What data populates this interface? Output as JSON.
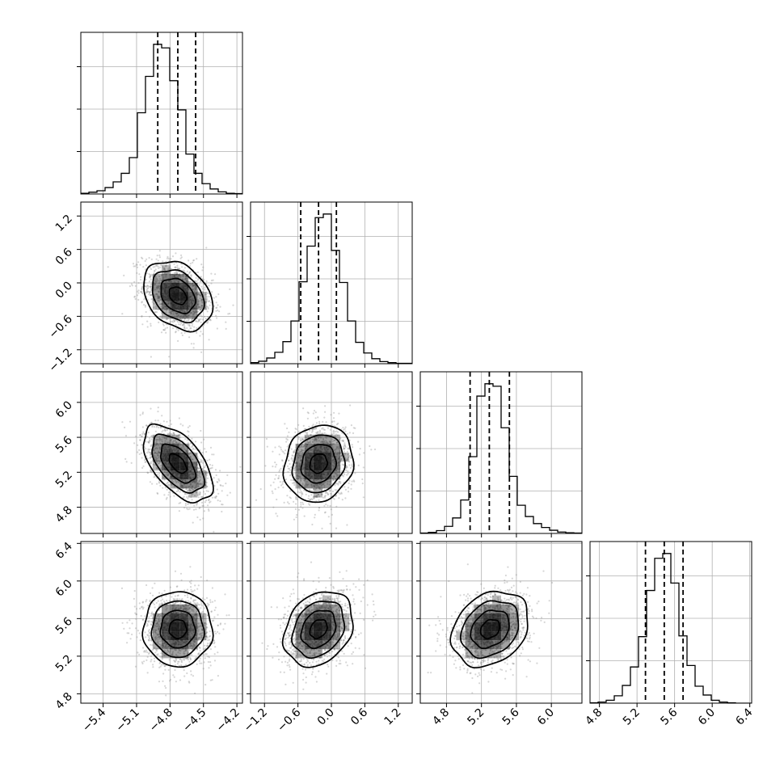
{
  "chart_data": {
    "type": "corner",
    "grid": true,
    "colors": {
      "line": "#000000",
      "grid": "#b0b0b0",
      "scatter": "#8a8a8a",
      "hist2d": "#000000"
    },
    "parameters": [
      {
        "id": "p0",
        "range": [
          -5.6,
          -4.15
        ],
        "ticks": [
          "-5.4",
          "-5.1",
          "-4.8",
          "-4.5",
          "-4.2"
        ],
        "tick_values": [
          -5.4,
          -5.1,
          -4.8,
          -4.5,
          -4.2
        ],
        "mean": -4.73,
        "sd": 0.155,
        "quantiles": [
          -4.91,
          -4.73,
          -4.57
        ]
      },
      {
        "id": "p1",
        "range": [
          -1.45,
          1.45
        ],
        "ticks": [
          "-1.2",
          "-0.6",
          "0.0",
          "0.6",
          "1.2"
        ],
        "tick_values": [
          -1.2,
          -0.6,
          0.0,
          0.6,
          1.2
        ],
        "mean": -0.23,
        "sd": 0.31,
        "quantiles": [
          -0.55,
          -0.23,
          0.09
        ]
      },
      {
        "id": "p2",
        "range": [
          4.5,
          6.35
        ],
        "ticks": [
          "4.8",
          "5.2",
          "5.6",
          "6.0"
        ],
        "tick_values": [
          4.8,
          5.2,
          5.6,
          6.0
        ],
        "mean": 5.3,
        "sd": 0.22,
        "quantiles": [
          5.07,
          5.29,
          5.52
        ]
      },
      {
        "id": "p3",
        "range": [
          4.7,
          6.42
        ],
        "ticks": [
          "4.8",
          "5.2",
          "5.6",
          "6.0",
          "6.4"
        ],
        "tick_values": [
          4.8,
          5.2,
          5.6,
          6.0,
          6.4
        ],
        "mean": 5.49,
        "sd": 0.2,
        "quantiles": [
          5.29,
          5.49,
          5.69
        ]
      }
    ],
    "correlations": [
      {
        "i": 1,
        "j": 0,
        "r": -0.3
      },
      {
        "i": 2,
        "j": 0,
        "r": -0.55
      },
      {
        "i": 2,
        "j": 1,
        "r": 0.12
      },
      {
        "i": 3,
        "j": 0,
        "r": 0.0
      },
      {
        "i": 3,
        "j": 1,
        "r": 0.25
      },
      {
        "i": 3,
        "j": 2,
        "r": 0.25
      }
    ],
    "contour_levels": [
      "0.5σ",
      "1σ",
      "1.5σ",
      "2σ"
    ],
    "histograms": [
      [
        2,
        5,
        9,
        18,
        34,
        58,
        102,
        228,
        330,
        420,
        410,
        318,
        236,
        112,
        58,
        29,
        14,
        6,
        2,
        1
      ],
      [
        3,
        7,
        16,
        32,
        62,
        120,
        230,
        330,
        410,
        420,
        318,
        228,
        120,
        60,
        30,
        14,
        6,
        3,
        1,
        1
      ],
      [
        1,
        3,
        8,
        20,
        44,
        95,
        218,
        390,
        425,
        418,
        300,
        162,
        80,
        48,
        28,
        17,
        9,
        4,
        2,
        1
      ],
      [
        1,
        3,
        8,
        20,
        48,
        98,
        180,
        305,
        392,
        405,
        325,
        182,
        102,
        46,
        22,
        8,
        3,
        1,
        0,
        0
      ]
    ]
  }
}
